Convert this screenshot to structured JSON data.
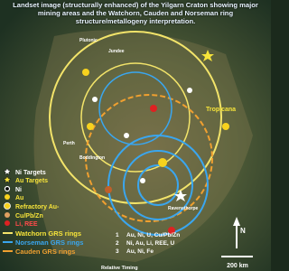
{
  "title": "Landset image (structurally enhanced) of the Yilgarn Craton showing major mining areas and the Watchorn, Cauden and Norseman ring structure/metallogeny interpretation.",
  "legend": [
    "Ni Targets",
    "Au Targets",
    "Ni",
    "Au",
    "Refractory Au-",
    "Cu/Pb/Zn",
    "Li, REE",
    "Watchorn GRS rings",
    "Norseman GRS rings",
    "Cauden GRS rings"
  ],
  "timing": {
    "items": [
      {
        "number": "1",
        "text": "Au, Ni, U, Cu/Pb/Zn"
      },
      {
        "number": "2",
        "text": "Ni, Au, Li, REE, U"
      },
      {
        "number": "3",
        "text": "Au, Ni, Fe"
      }
    ],
    "label": "Relative Timing"
  },
  "places": [
    "Plutonic",
    "Jundee",
    "Perth",
    "Boddington",
    "Tropicana",
    "Ravensthorpe"
  ],
  "scale": {
    "north": "N",
    "distance": "200 km"
  }
}
